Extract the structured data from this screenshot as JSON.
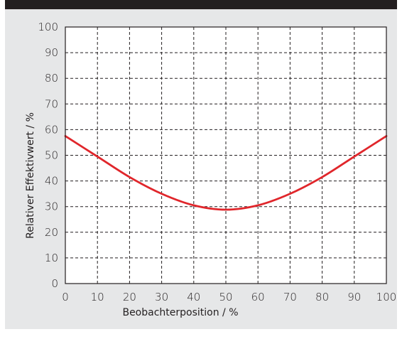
{
  "chart_data": {
    "type": "line",
    "title": "",
    "xlabel": "Beobachterposition / %",
    "ylabel": "Relativer Effektivwert / %",
    "xlim": [
      0,
      100
    ],
    "ylim": [
      0,
      100
    ],
    "x_ticks": [
      "0",
      "10",
      "20",
      "30",
      "40",
      "50",
      "60",
      "70",
      "80",
      "90",
      "100"
    ],
    "y_ticks": [
      "0",
      "10",
      "20",
      "30",
      "40",
      "50",
      "60",
      "70",
      "80",
      "90",
      "100"
    ],
    "grid": true,
    "legend": "none",
    "series": [
      {
        "color": "#e0262b",
        "x": [
          0,
          10,
          20,
          30,
          40,
          50,
          60,
          70,
          80,
          90,
          100
        ],
        "y": [
          57.5,
          49.5,
          41.5,
          35,
          30.5,
          28.8,
          30.5,
          35,
          41.5,
          49.5,
          57.5
        ]
      }
    ]
  },
  "colors": {
    "background_panel": "#e6e7e8",
    "top_bar": "#231f20",
    "plot_area": "#ffffff",
    "grid": "#231f20",
    "curve": "#e0262b"
  }
}
